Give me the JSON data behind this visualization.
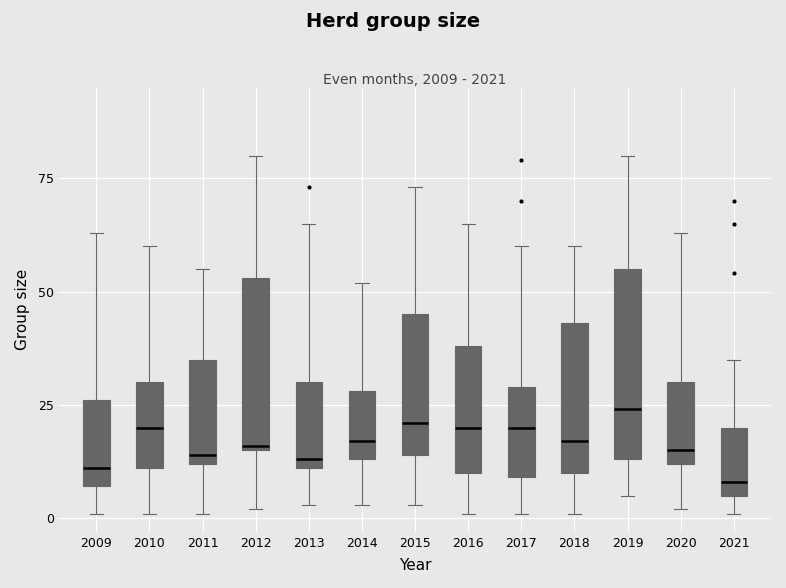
{
  "title": "Herd group size",
  "subtitle": "Even months, 2009 - 2021",
  "xlabel": "Year",
  "ylabel": "Group size",
  "background_color": "#e8e8e8",
  "plot_bg_color": "#e8e8e8",
  "grid_color": "#ffffff",
  "box_facecolor": "#ffffff",
  "box_edge_color": "#666666",
  "median_color": "#000000",
  "whisker_color": "#666666",
  "cap_color": "#666666",
  "flier_color": "#000000",
  "ylim": [
    -3,
    95
  ],
  "yticks": [
    0,
    25,
    50,
    75
  ],
  "box_stats": [
    {
      "year": 2009,
      "q1": 7,
      "median": 11,
      "q3": 26,
      "whislo": 1,
      "whishi": 63,
      "fliers": []
    },
    {
      "year": 2010,
      "q1": 11,
      "median": 20,
      "q3": 30,
      "whislo": 1,
      "whishi": 60,
      "fliers": []
    },
    {
      "year": 2011,
      "q1": 12,
      "median": 14,
      "q3": 35,
      "whislo": 1,
      "whishi": 55,
      "fliers": []
    },
    {
      "year": 2012,
      "q1": 15,
      "median": 16,
      "q3": 53,
      "whislo": 2,
      "whishi": 80,
      "fliers": []
    },
    {
      "year": 2013,
      "q1": 11,
      "median": 13,
      "q3": 30,
      "whislo": 3,
      "whishi": 65,
      "fliers": [
        73
      ]
    },
    {
      "year": 2014,
      "q1": 13,
      "median": 17,
      "q3": 28,
      "whislo": 3,
      "whishi": 52,
      "fliers": []
    },
    {
      "year": 2015,
      "q1": 14,
      "median": 21,
      "q3": 45,
      "whislo": 3,
      "whishi": 73,
      "fliers": []
    },
    {
      "year": 2016,
      "q1": 10,
      "median": 20,
      "q3": 38,
      "whislo": 1,
      "whishi": 65,
      "fliers": []
    },
    {
      "year": 2017,
      "q1": 9,
      "median": 20,
      "q3": 29,
      "whislo": 1,
      "whishi": 60,
      "fliers": [
        70,
        79
      ]
    },
    {
      "year": 2018,
      "q1": 10,
      "median": 17,
      "q3": 43,
      "whislo": 1,
      "whishi": 60,
      "fliers": []
    },
    {
      "year": 2019,
      "q1": 13,
      "median": 24,
      "q3": 55,
      "whislo": 5,
      "whishi": 80,
      "fliers": []
    },
    {
      "year": 2020,
      "q1": 12,
      "median": 15,
      "q3": 30,
      "whislo": 2,
      "whishi": 63,
      "fliers": []
    },
    {
      "year": 2021,
      "q1": 5,
      "median": 8,
      "q3": 20,
      "whislo": 1,
      "whishi": 35,
      "fliers": [
        54,
        65,
        70
      ]
    }
  ],
  "title_fontsize": 14,
  "subtitle_fontsize": 10,
  "axis_label_fontsize": 11,
  "tick_fontsize": 9,
  "box_width": 0.5,
  "linewidth": 0.8,
  "median_linewidth": 1.8,
  "flier_size": 3
}
